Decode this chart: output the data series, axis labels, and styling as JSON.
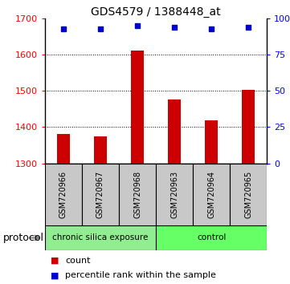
{
  "title": "GDS4579 / 1388448_at",
  "samples": [
    "GSM720966",
    "GSM720967",
    "GSM720968",
    "GSM720963",
    "GSM720964",
    "GSM720965"
  ],
  "counts": [
    1382,
    1375,
    1612,
    1477,
    1418,
    1503
  ],
  "percentile_ranks": [
    93,
    93,
    95,
    94,
    93,
    94
  ],
  "group_labels": [
    "chronic silica exposure",
    "control"
  ],
  "group_split": 3,
  "bar_color": "#CC0000",
  "dot_color": "#0000CC",
  "ylim_left": [
    1300,
    1700
  ],
  "ylim_right": [
    0,
    100
  ],
  "yticks_left": [
    1300,
    1400,
    1500,
    1600,
    1700
  ],
  "yticks_right": [
    0,
    25,
    50,
    75,
    100
  ],
  "ytick_right_labels": [
    "0",
    "25",
    "50",
    "75",
    "100%"
  ],
  "grid_values": [
    1400,
    1500,
    1600
  ],
  "sample_label_bg": "#C8C8C8",
  "group1_color": "#90EE90",
  "group2_color": "#66FF66",
  "protocol_label": "protocol",
  "legend_count_label": "count",
  "legend_percentile_label": "percentile rank within the sample",
  "bar_width": 0.35
}
